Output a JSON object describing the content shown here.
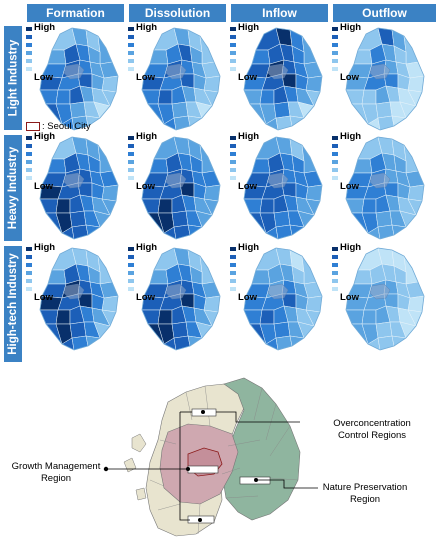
{
  "columns": [
    "Formation",
    "Dissolution",
    "Inflow",
    "Outflow"
  ],
  "rows": [
    "Light Industry",
    "Heavy Industry",
    "High-tech Industry"
  ],
  "legend": {
    "high": "High",
    "low": "Low",
    "colors": [
      "#08306b",
      "#1c5fb8",
      "#2f7fd4",
      "#5aa3e0",
      "#8ec6ee",
      "#bfe3f7"
    ]
  },
  "seoul_legend": ": Seoul City",
  "seoul_color": "#8b1a1a",
  "regions": {
    "overconcentration": "Overconcentration Control Regions",
    "growth": "Growth Management Region",
    "nature": "Nature Preservation Region"
  },
  "region_colors": {
    "overconcentration": "#cfa8b0",
    "growth": "#e8e4cf",
    "nature": "#8fb59f",
    "seoul": "#c48f9a"
  }
}
